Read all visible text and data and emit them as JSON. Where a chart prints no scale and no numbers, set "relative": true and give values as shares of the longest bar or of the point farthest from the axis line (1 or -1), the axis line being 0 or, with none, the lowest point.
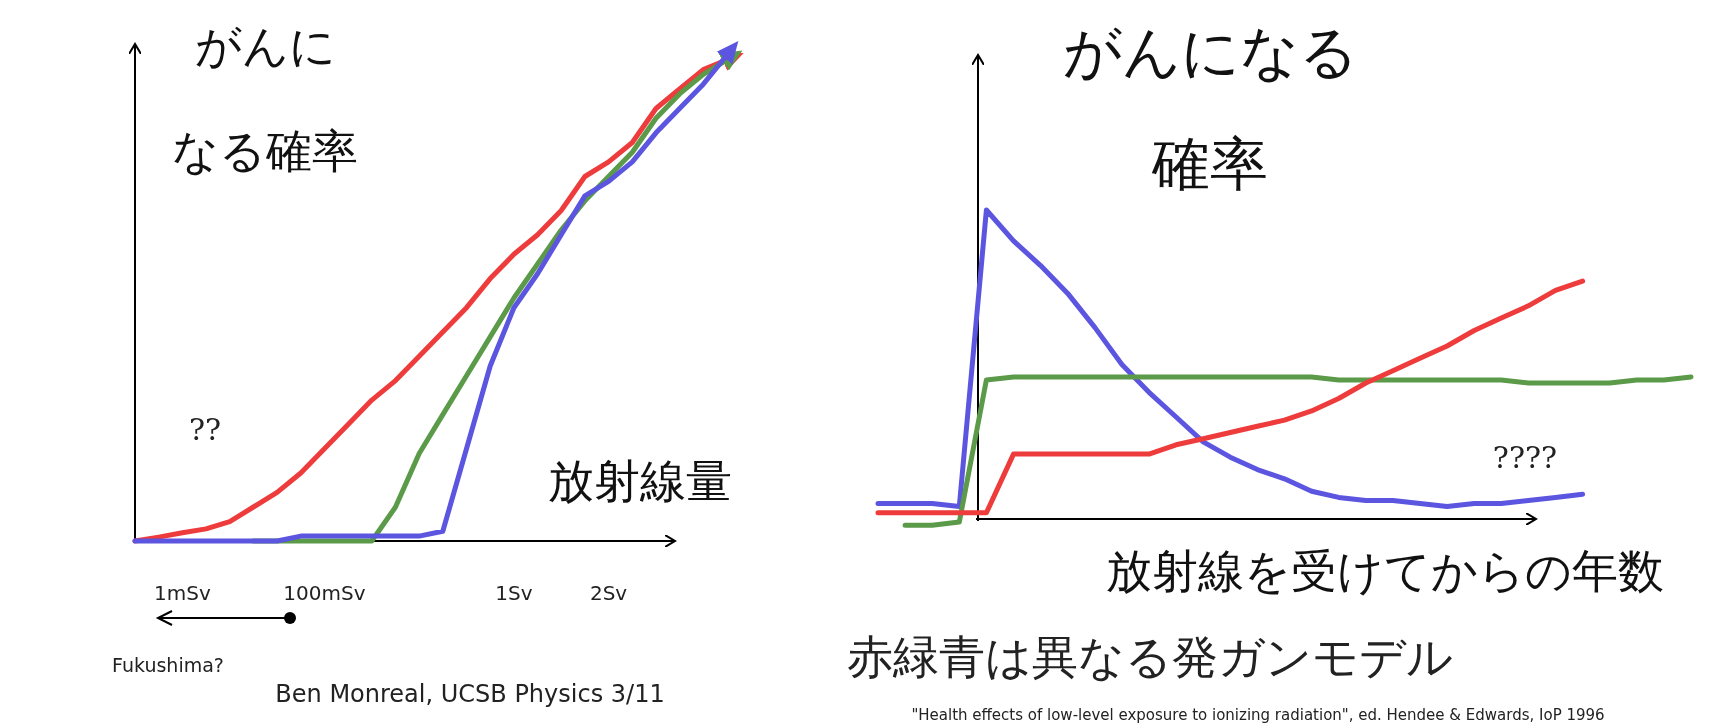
{
  "chart_data": [
    {
      "type": "line",
      "relative": true,
      "ylabel": "がんになる確率",
      "xlabel": "放射線量",
      "categories": [
        null,
        null,
        "1mSv",
        null,
        null,
        null,
        null,
        null,
        "100mSv",
        null,
        null,
        null,
        null,
        null,
        null,
        null,
        "1Sv",
        null,
        null,
        null,
        "2Sv",
        null,
        null,
        null,
        null,
        null
      ],
      "tick_labels": "x",
      "annotations": [
        "??",
        "Fukushima?",
        "Ben Monreal, UCSB Physics  3/11"
      ],
      "series": [
        {
          "color": "#ee3b3b",
          "values": [
            0,
            0.008,
            0.017,
            0.025,
            0.04,
            0.07,
            0.1,
            0.14,
            0.19,
            0.24,
            0.29,
            0.33,
            0.38,
            0.43,
            0.48,
            0.54,
            0.59,
            0.63,
            0.68,
            0.75,
            0.78,
            0.82,
            0.89,
            0.93,
            0.97,
            0.99
          ]
        },
        {
          "color": "#5a9a48",
          "values": [
            null,
            null,
            null,
            null,
            null,
            0,
            0,
            0,
            0,
            0,
            0,
            0.07,
            0.18,
            0.26,
            0.34,
            0.42,
            0.5,
            0.57,
            0.64,
            0.7,
            0.75,
            0.8,
            0.87,
            0.92,
            0.96,
            0.99
          ]
        },
        {
          "color": "#5b55e0",
          "values": [
            0,
            0,
            0,
            0,
            0,
            0,
            0,
            0.01,
            0.01,
            0.01,
            0.01,
            0.01,
            0.01,
            0.02,
            0.19,
            0.36,
            0.48,
            0.55,
            0.63,
            0.71,
            0.74,
            0.78,
            0.84,
            0.89,
            0.94,
            1
          ]
        }
      ]
    },
    {
      "type": "line",
      "relative": true,
      "ylabel": "がんになる確率",
      "xlabel": "放射線を受けてからの年数",
      "categories": [
        null,
        null,
        null,
        null,
        null,
        null,
        null,
        null,
        null,
        null,
        null,
        null,
        null,
        null,
        null,
        null,
        null,
        null,
        null,
        null,
        null,
        null,
        null,
        null,
        null,
        null,
        null,
        null,
        null,
        null,
        null
      ],
      "tick_labels": false,
      "annotations": [
        "????",
        "赤緑青は異なる発ガンモデル",
        "\"Health effects of low-level exposure to ionizing radiation\", ed. Hendee & Edwards, IoP 1996"
      ],
      "series": [
        {
          "color": "#5b55e0",
          "values": [
            0.05,
            0.05,
            0.05,
            0.04,
            1,
            0.9,
            0.82,
            0.73,
            0.62,
            0.5,
            0.41,
            0.33,
            0.25,
            0.2,
            0.16,
            0.13,
            0.09,
            0.07,
            0.06,
            0.06,
            0.05,
            0.04,
            0.05,
            0.05,
            0.06,
            0.07,
            0.08,
            null,
            null,
            null,
            null
          ]
        },
        {
          "color": "#5a9a48",
          "values": [
            null,
            -0.02,
            -0.02,
            -0.01,
            0.45,
            0.46,
            0.46,
            0.46,
            0.46,
            0.46,
            0.46,
            0.46,
            0.46,
            0.46,
            0.46,
            0.46,
            0.46,
            0.45,
            0.45,
            0.45,
            0.45,
            0.45,
            0.45,
            0.45,
            0.44,
            0.44,
            0.44,
            0.44,
            0.45,
            0.45,
            0.46
          ]
        },
        {
          "color": "#ee3b3b",
          "values": [
            0.02,
            0.02,
            0.02,
            0.02,
            0.02,
            0.21,
            0.21,
            0.21,
            0.21,
            0.21,
            0.21,
            0.24,
            0.26,
            0.28,
            0.3,
            0.32,
            0.35,
            0.39,
            0.44,
            0.48,
            0.52,
            0.56,
            0.61,
            0.65,
            0.69,
            0.74,
            0.77,
            null,
            null,
            null,
            null
          ]
        }
      ]
    }
  ]
}
